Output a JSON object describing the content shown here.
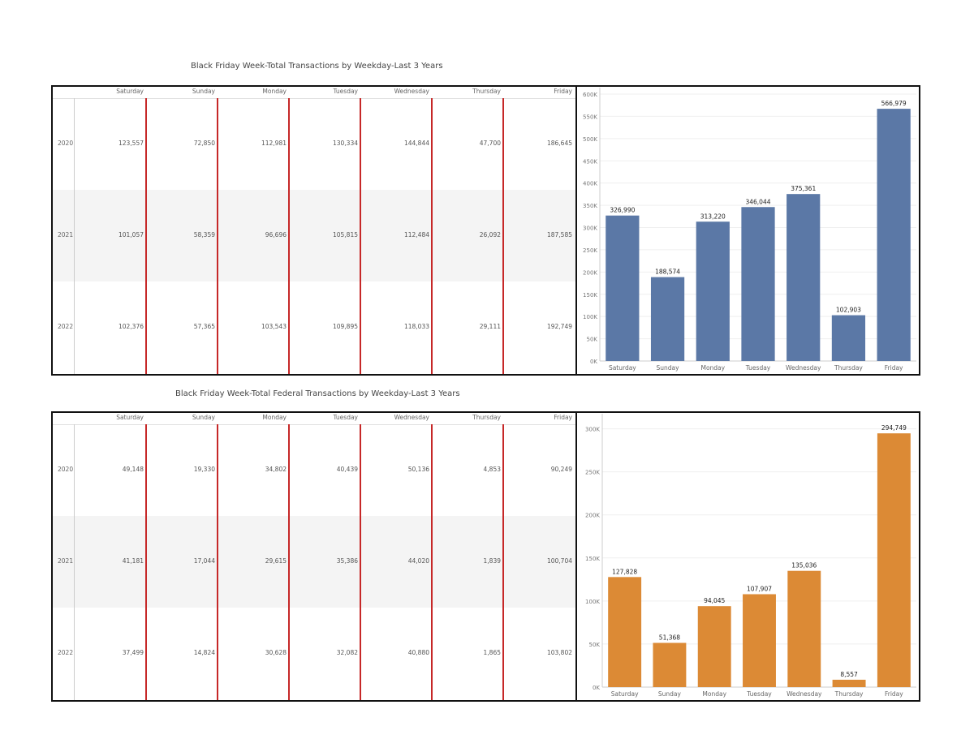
{
  "days": [
    "Saturday",
    "Sunday",
    "Monday",
    "Tuesday",
    "Wednesday",
    "Thursday",
    "Friday"
  ],
  "total": {
    "title": "Black Friday Week-Total Transactions by Weekday-Last 3 Years",
    "rows": [
      {
        "year": "2020",
        "values": [
          "123,557",
          "72,850",
          "112,981",
          "130,334",
          "144,844",
          "47,700",
          "186,645"
        ]
      },
      {
        "year": "2021",
        "values": [
          "101,057",
          "58,359",
          "96,696",
          "105,815",
          "112,484",
          "26,092",
          "187,585"
        ]
      },
      {
        "year": "2022",
        "values": [
          "102,376",
          "57,365",
          "103,543",
          "109,895",
          "118,033",
          "29,111",
          "192,749"
        ]
      }
    ],
    "chart_data": {
      "type": "bar",
      "categories": [
        "Saturday",
        "Sunday",
        "Monday",
        "Tuesday",
        "Wednesday",
        "Thursday",
        "Friday"
      ],
      "values": [
        326990,
        188574,
        313220,
        346044,
        375361,
        102903,
        566979
      ],
      "value_labels": [
        "326,990",
        "188,574",
        "313,220",
        "346,044",
        "375,361",
        "102,903",
        "566,979"
      ],
      "ylim": [
        0,
        600000
      ],
      "yticks": [
        0,
        50000,
        100000,
        150000,
        200000,
        250000,
        300000,
        350000,
        400000,
        450000,
        500000,
        550000,
        600000
      ],
      "ytick_labels": [
        "0K",
        "50K",
        "100K",
        "150K",
        "200K",
        "250K",
        "300K",
        "350K",
        "400K",
        "450K",
        "500K",
        "550K",
        "600K"
      ],
      "color": "#5b78a6"
    }
  },
  "federal": {
    "title": "Black Friday Week-Total Federal Transactions by Weekday-Last 3 Years",
    "rows": [
      {
        "year": "2020",
        "values": [
          "49,148",
          "19,330",
          "34,802",
          "40,439",
          "50,136",
          "4,853",
          "90,249"
        ]
      },
      {
        "year": "2021",
        "values": [
          "41,181",
          "17,044",
          "29,615",
          "35,386",
          "44,020",
          "1,839",
          "100,704"
        ]
      },
      {
        "year": "2022",
        "values": [
          "37,499",
          "14,824",
          "30,628",
          "32,082",
          "40,880",
          "1,865",
          "103,802"
        ]
      }
    ],
    "chart_data": {
      "type": "bar",
      "categories": [
        "Saturday",
        "Sunday",
        "Monday",
        "Tuesday",
        "Wednesday",
        "Thursday",
        "Friday"
      ],
      "values": [
        127828,
        51368,
        94045,
        107907,
        135036,
        8557,
        294749
      ],
      "value_labels": [
        "127,828",
        "51,368",
        "94,045",
        "107,907",
        "135,036",
        "8,557",
        "294,749"
      ],
      "ylim": [
        0,
        310000
      ],
      "yticks": [
        0,
        50000,
        100000,
        150000,
        200000,
        250000,
        300000
      ],
      "ytick_labels": [
        "0K",
        "50K",
        "100K",
        "150K",
        "200K",
        "250K",
        "300K"
      ],
      "color": "#dc8a35"
    }
  }
}
